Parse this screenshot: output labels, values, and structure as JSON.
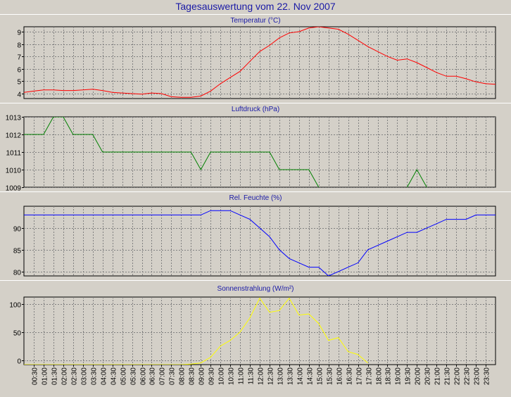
{
  "title": "Tagesauswertung vom 22. Nov 2007",
  "colors": {
    "background": "#d4d0c8",
    "title_text": "#1a1aa6",
    "temperature": "#ff0000",
    "pressure": "#008000",
    "humidity": "#0000ff",
    "solar": "#ffff00",
    "grid": "#808080"
  },
  "chart_data": [
    {
      "type": "line",
      "title": "Temperatur (°C)",
      "color": "#ff0000",
      "ylim": [
        3.6,
        9.4
      ],
      "yticks": [
        4,
        5,
        6,
        7,
        8,
        9
      ],
      "grid": true,
      "x": [
        "00:00",
        "00:30",
        "01:00",
        "01:30",
        "02:00",
        "02:30",
        "03:00",
        "03:30",
        "04:00",
        "04:30",
        "05:00",
        "05:30",
        "06:00",
        "06:30",
        "07:00",
        "07:30",
        "08:00",
        "08:30",
        "09:00",
        "09:30",
        "10:00",
        "10:30",
        "11:00",
        "11:30",
        "12:00",
        "12:30",
        "13:00",
        "13:30",
        "14:00",
        "14:30",
        "15:00",
        "15:30",
        "16:00",
        "16:30",
        "17:00",
        "17:30",
        "18:00",
        "18:30",
        "19:00",
        "19:30",
        "20:00",
        "20:30",
        "21:00",
        "21:30",
        "22:00",
        "22:30",
        "23:00",
        "23:30",
        "00:00"
      ],
      "values": [
        4.1,
        4.2,
        4.3,
        4.3,
        4.25,
        4.25,
        4.3,
        4.35,
        4.25,
        4.1,
        4.05,
        4.0,
        3.95,
        4.05,
        4.0,
        3.75,
        3.7,
        3.7,
        3.8,
        4.2,
        4.8,
        5.3,
        5.8,
        6.6,
        7.4,
        7.9,
        8.5,
        8.9,
        9.0,
        9.3,
        9.4,
        9.3,
        9.2,
        8.8,
        8.3,
        7.8,
        7.4,
        7.0,
        6.7,
        6.8,
        6.5,
        6.1,
        5.7,
        5.4,
        5.4,
        5.2,
        4.95,
        4.8,
        4.75
      ]
    },
    {
      "type": "line",
      "title": "Luftdruck (hPa)",
      "color": "#008000",
      "ylim": [
        1009,
        1013
      ],
      "yticks": [
        1009,
        1010,
        1011,
        1012,
        1013
      ],
      "grid": true,
      "x": [
        "00:00",
        "00:30",
        "01:00",
        "01:30",
        "02:00",
        "02:30",
        "03:00",
        "03:30",
        "04:00",
        "04:30",
        "05:00",
        "05:30",
        "06:00",
        "06:30",
        "07:00",
        "07:30",
        "08:00",
        "08:30",
        "09:00",
        "09:30",
        "10:00",
        "10:30",
        "11:00",
        "11:30",
        "12:00",
        "12:30",
        "13:00",
        "13:30",
        "14:00",
        "14:30",
        "15:00",
        "15:30",
        "16:00",
        "16:30",
        "17:00",
        "17:30",
        "18:00",
        "18:30",
        "19:00",
        "19:30",
        "20:00",
        "20:30",
        "21:00",
        "21:30",
        "22:00",
        "22:30",
        "23:00",
        "23:30",
        "00:00"
      ],
      "values": [
        1012,
        1012,
        1012,
        1013,
        1013,
        1012,
        1012,
        1012,
        1011,
        1011,
        1011,
        1011,
        1011,
        1011,
        1011,
        1011,
        1011,
        1011,
        1010,
        1011,
        1011,
        1011,
        1011,
        1011,
        1011,
        1011,
        1010,
        1010,
        1010,
        1010,
        1009,
        1008.5,
        1008.5,
        1008.5,
        1008.5,
        1008.5,
        1008.5,
        1008.5,
        1008.5,
        1009,
        1010,
        1009,
        1008.5,
        1008.5,
        1008.5,
        1008.5,
        1008.5,
        1008.5,
        1008.5
      ]
    },
    {
      "type": "line",
      "title": "Rel. Feuchte (%)",
      "color": "#0000ff",
      "ylim": [
        79,
        95
      ],
      "yticks": [
        80,
        85,
        90
      ],
      "grid": true,
      "x": [
        "00:00",
        "00:30",
        "01:00",
        "01:30",
        "02:00",
        "02:30",
        "03:00",
        "03:30",
        "04:00",
        "04:30",
        "05:00",
        "05:30",
        "06:00",
        "06:30",
        "07:00",
        "07:30",
        "08:00",
        "08:30",
        "09:00",
        "09:30",
        "10:00",
        "10:30",
        "11:00",
        "11:30",
        "12:00",
        "12:30",
        "13:00",
        "13:30",
        "14:00",
        "14:30",
        "15:00",
        "15:30",
        "16:00",
        "16:30",
        "17:00",
        "17:30",
        "18:00",
        "18:30",
        "19:00",
        "19:30",
        "20:00",
        "20:30",
        "21:00",
        "21:30",
        "22:00",
        "22:30",
        "23:00",
        "23:30",
        "00:00"
      ],
      "values": [
        93,
        93,
        93,
        93,
        93,
        93,
        93,
        93,
        93,
        93,
        93,
        93,
        93,
        93,
        93,
        93,
        93,
        93,
        93,
        94,
        94,
        94,
        93,
        92,
        90,
        88,
        85,
        83,
        82,
        81,
        81,
        79,
        80,
        81,
        82,
        85,
        86,
        87,
        88,
        89,
        89,
        90,
        91,
        92,
        92,
        92,
        93,
        93,
        93
      ]
    },
    {
      "type": "line",
      "title": "Sonnenstrahlung (W/m²)",
      "color": "#ffff00",
      "ylim": [
        -8,
        112
      ],
      "yticks": [
        0,
        50,
        100
      ],
      "grid": true,
      "x": [
        "00:00",
        "00:30",
        "01:00",
        "01:30",
        "02:00",
        "02:30",
        "03:00",
        "03:30",
        "04:00",
        "04:30",
        "05:00",
        "05:30",
        "06:00",
        "06:30",
        "07:00",
        "07:30",
        "08:00",
        "08:30",
        "09:00",
        "09:30",
        "10:00",
        "10:30",
        "11:00",
        "11:30",
        "12:00",
        "12:30",
        "13:00",
        "13:30",
        "14:00",
        "14:30",
        "15:00",
        "15:30",
        "16:00",
        "16:30",
        "17:00",
        "17:30"
      ],
      "values": [
        -8,
        -8,
        -8,
        -8,
        -8,
        -8,
        -8,
        -8,
        -8,
        -8,
        -8,
        -8,
        -8,
        -8,
        -8,
        -8,
        -8,
        -7,
        -5,
        5,
        25,
        35,
        50,
        75,
        110,
        85,
        88,
        110,
        80,
        82,
        65,
        35,
        40,
        15,
        10,
        -5
      ]
    }
  ],
  "x_tick_labels": [
    "00:30",
    "01:00",
    "01:30",
    "02:00",
    "02:30",
    "03:00",
    "03:30",
    "04:00",
    "04:30",
    "05:00",
    "05:30",
    "06:00",
    "06:30",
    "07:00",
    "07:30",
    "08:00",
    "08:30",
    "09:00",
    "09:30",
    "10:00",
    "10:30",
    "11:00",
    "11:30",
    "12:00",
    "12:30",
    "13:00",
    "13:30",
    "14:00",
    "14:30",
    "15:00",
    "15:30",
    "16:00",
    "16:30",
    "17:00",
    "17:30",
    "18:00",
    "18:30",
    "19:00",
    "19:30",
    "20:00",
    "20:30",
    "21:00",
    "21:30",
    "22:00",
    "22:30",
    "23:00",
    "23:30"
  ]
}
